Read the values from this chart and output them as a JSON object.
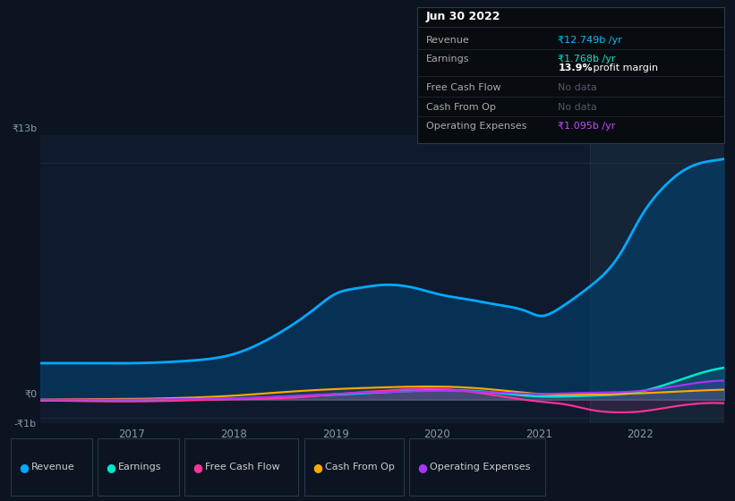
{
  "bg_color": "#0d1421",
  "plot_bg_color": "#0f1a2e",
  "plot_bg_right_color": "#152436",
  "grid_color": "#1e2d40",
  "info_box": {
    "title": "Jun 30 2022",
    "bg_color": "#080c10",
    "border_color": "#2a3a4a",
    "divider_color": "#1e2d3d",
    "rows": [
      {
        "label": "Revenue",
        "value": "₹12.749b /yr",
        "value_color": "#00bfff",
        "sub": null
      },
      {
        "label": "Earnings",
        "value": "₹1.768b /yr",
        "value_color": "#00e5cc",
        "sub": "13.9% profit margin"
      },
      {
        "label": "Free Cash Flow",
        "value": "No data",
        "value_color": "#555566",
        "sub": null
      },
      {
        "label": "Cash From Op",
        "value": "No data",
        "value_color": "#555566",
        "sub": null
      },
      {
        "label": "Operating Expenses",
        "value": "₹1.095b /yr",
        "value_color": "#cc44ff",
        "sub": null
      }
    ]
  },
  "x_ticks": [
    2017,
    2018,
    2019,
    2020,
    2021,
    2022
  ],
  "ylim": [
    -1.3,
    14.5
  ],
  "xlim": [
    2016.1,
    2022.82
  ],
  "divider_x": 2021.5,
  "revenue": {
    "x": [
      2016.1,
      2016.4,
      2016.7,
      2017.0,
      2017.3,
      2017.6,
      2018.0,
      2018.4,
      2018.8,
      2019.0,
      2019.2,
      2019.5,
      2019.8,
      2020.0,
      2020.3,
      2020.6,
      2020.9,
      2021.0,
      2021.2,
      2021.5,
      2021.8,
      2022.0,
      2022.2,
      2022.5,
      2022.7,
      2022.82
    ],
    "y": [
      2.0,
      2.0,
      2.0,
      2.0,
      2.05,
      2.15,
      2.5,
      3.5,
      5.0,
      5.8,
      6.1,
      6.3,
      6.1,
      5.8,
      5.5,
      5.2,
      4.8,
      4.6,
      5.0,
      6.2,
      8.0,
      10.0,
      11.5,
      12.8,
      13.1,
      13.2
    ],
    "color": "#00aaff",
    "linewidth": 2.0,
    "fill_color": "#004477",
    "fill_alpha": 0.55
  },
  "earnings": {
    "x": [
      2016.1,
      2016.5,
      2017.0,
      2017.5,
      2018.0,
      2018.5,
      2019.0,
      2019.5,
      2020.0,
      2020.5,
      2021.0,
      2021.5,
      2022.0,
      2022.5,
      2022.82
    ],
    "y": [
      -0.05,
      -0.05,
      -0.05,
      0.0,
      0.05,
      0.15,
      0.28,
      0.42,
      0.52,
      0.42,
      0.18,
      0.22,
      0.45,
      1.3,
      1.75
    ],
    "color": "#00e5cc",
    "linewidth": 1.8,
    "fill_color": "#00e5cc",
    "fill_alpha": 0.12
  },
  "free_cash_flow": {
    "x": [
      2016.1,
      2016.5,
      2017.0,
      2017.5,
      2018.0,
      2018.5,
      2019.0,
      2019.5,
      2020.0,
      2020.5,
      2021.0,
      2021.3,
      2021.5,
      2021.8,
      2022.0,
      2022.3,
      2022.5,
      2022.82
    ],
    "y": [
      -0.05,
      -0.08,
      -0.1,
      -0.05,
      0.02,
      0.08,
      0.3,
      0.5,
      0.6,
      0.3,
      -0.1,
      -0.3,
      -0.55,
      -0.7,
      -0.65,
      -0.4,
      -0.25,
      -0.2
    ],
    "color": "#ff3399",
    "linewidth": 1.5,
    "fill_color": "#ff3399",
    "fill_alpha": 0.1
  },
  "cash_from_op": {
    "x": [
      2016.1,
      2016.5,
      2017.0,
      2017.5,
      2018.0,
      2018.5,
      2019.0,
      2019.5,
      2020.0,
      2020.5,
      2021.0,
      2021.5,
      2022.0,
      2022.5,
      2022.82
    ],
    "y": [
      0.0,
      0.02,
      0.04,
      0.1,
      0.22,
      0.42,
      0.58,
      0.68,
      0.72,
      0.58,
      0.32,
      0.28,
      0.35,
      0.48,
      0.55
    ],
    "color": "#ffaa00",
    "linewidth": 1.5,
    "fill_color": "#ffaa00",
    "fill_alpha": 0.1
  },
  "operating_expenses": {
    "x": [
      2016.1,
      2016.5,
      2017.0,
      2017.5,
      2018.0,
      2018.5,
      2019.0,
      2019.5,
      2020.0,
      2020.5,
      2021.0,
      2021.5,
      2022.0,
      2022.5,
      2022.82
    ],
    "y": [
      0.0,
      0.0,
      0.0,
      0.04,
      0.08,
      0.18,
      0.32,
      0.42,
      0.48,
      0.42,
      0.32,
      0.38,
      0.48,
      0.88,
      1.05
    ],
    "color": "#aa33ff",
    "linewidth": 1.5,
    "fill_color": "#aa33ff",
    "fill_alpha": 0.15
  },
  "legend": [
    {
      "label": "Revenue",
      "color": "#00aaff"
    },
    {
      "label": "Earnings",
      "color": "#00e5cc"
    },
    {
      "label": "Free Cash Flow",
      "color": "#ff3399"
    },
    {
      "label": "Cash From Op",
      "color": "#ffaa00"
    },
    {
      "label": "Operating Expenses",
      "color": "#aa33ff"
    }
  ]
}
